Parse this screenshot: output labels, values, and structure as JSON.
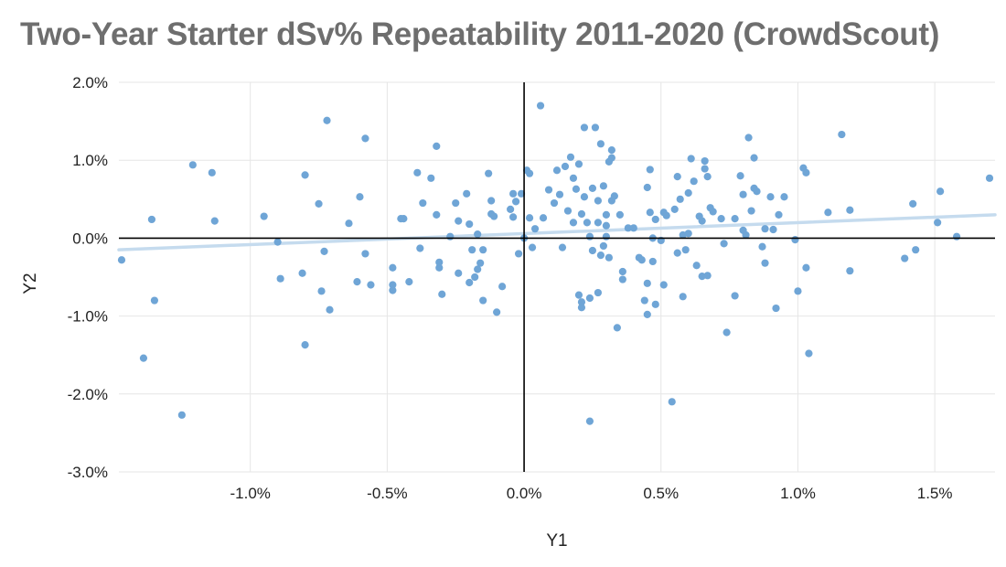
{
  "chart_data": {
    "type": "scatter",
    "title": "Two-Year Starter dSv% Repeatability 2011-2020  (CrowdScout)",
    "xlabel": "Y1",
    "ylabel": "Y2",
    "xlim": [
      -1.48,
      1.72
    ],
    "ylim": [
      -3.0,
      2.0
    ],
    "x_ticks": [
      -1.0,
      -0.5,
      0.0,
      0.5,
      1.0,
      1.5
    ],
    "x_tick_labels": [
      "-1.0%",
      "-0.5%",
      "0.0%",
      "0.5%",
      "1.0%",
      "1.5%"
    ],
    "y_ticks": [
      2.0,
      1.0,
      0.0,
      -1.0,
      -2.0,
      -3.0
    ],
    "y_tick_labels": [
      "2.0%",
      "1.0%",
      "0.0%",
      "-1.0%",
      "-2.0%",
      "-3.0%"
    ],
    "grid": true,
    "point_color": "#6fa5d6",
    "trendline": {
      "color": "#c5dbee",
      "x": [
        -1.48,
        1.72
      ],
      "y": [
        -0.15,
        0.3
      ]
    },
    "points": [
      [
        -1.47,
        -0.28
      ],
      [
        -1.35,
        -0.8
      ],
      [
        -1.36,
        0.24
      ],
      [
        -1.39,
        -1.54
      ],
      [
        -1.25,
        -2.27
      ],
      [
        -1.21,
        0.94
      ],
      [
        -1.14,
        0.84
      ],
      [
        -1.13,
        0.22
      ],
      [
        -0.95,
        0.28
      ],
      [
        -0.9,
        -0.05
      ],
      [
        -0.89,
        -0.52
      ],
      [
        -0.8,
        0.81
      ],
      [
        -0.81,
        -0.45
      ],
      [
        -0.8,
        -1.37
      ],
      [
        -0.75,
        0.44
      ],
      [
        -0.74,
        -0.68
      ],
      [
        -0.73,
        -0.17
      ],
      [
        -0.72,
        1.51
      ],
      [
        -0.71,
        -0.92
      ],
      [
        -0.64,
        0.19
      ],
      [
        -0.6,
        0.53
      ],
      [
        -0.61,
        -0.56
      ],
      [
        -0.58,
        1.28
      ],
      [
        -0.58,
        -0.2
      ],
      [
        -0.56,
        -0.6
      ],
      [
        -0.48,
        -0.38
      ],
      [
        -0.48,
        -0.67
      ],
      [
        -0.48,
        -0.6
      ],
      [
        -0.45,
        0.25
      ],
      [
        -0.44,
        0.25
      ],
      [
        -0.42,
        -0.56
      ],
      [
        -0.39,
        0.84
      ],
      [
        -0.38,
        -0.13
      ],
      [
        -0.37,
        0.45
      ],
      [
        -0.34,
        0.77
      ],
      [
        -0.32,
        1.18
      ],
      [
        -0.32,
        0.3
      ],
      [
        -0.31,
        -0.38
      ],
      [
        -0.31,
        -0.31
      ],
      [
        -0.3,
        -0.72
      ],
      [
        -0.27,
        0.02
      ],
      [
        -0.25,
        0.45
      ],
      [
        -0.24,
        -0.45
      ],
      [
        -0.24,
        0.22
      ],
      [
        -0.21,
        0.57
      ],
      [
        -0.2,
        0.18
      ],
      [
        -0.2,
        -0.57
      ],
      [
        -0.19,
        -0.15
      ],
      [
        -0.18,
        -0.5
      ],
      [
        -0.17,
        -0.4
      ],
      [
        -0.17,
        0.05
      ],
      [
        -0.16,
        -0.32
      ],
      [
        -0.15,
        -0.8
      ],
      [
        -0.15,
        -0.15
      ],
      [
        -0.13,
        0.83
      ],
      [
        -0.12,
        0.48
      ],
      [
        -0.12,
        0.31
      ],
      [
        -0.11,
        0.28
      ],
      [
        -0.1,
        -0.95
      ],
      [
        -0.08,
        -0.62
      ],
      [
        -0.05,
        0.37
      ],
      [
        -0.04,
        0.27
      ],
      [
        -0.04,
        0.57
      ],
      [
        -0.03,
        0.47
      ],
      [
        -0.02,
        -0.2
      ],
      [
        -0.01,
        0.57
      ],
      [
        0.0,
        0.0
      ],
      [
        0.01,
        0.87
      ],
      [
        0.02,
        0.83
      ],
      [
        0.02,
        0.26
      ],
      [
        0.03,
        -0.12
      ],
      [
        0.04,
        0.12
      ],
      [
        0.06,
        1.7
      ],
      [
        0.07,
        0.26
      ],
      [
        0.09,
        0.62
      ],
      [
        0.11,
        0.45
      ],
      [
        0.12,
        0.87
      ],
      [
        0.13,
        0.56
      ],
      [
        0.14,
        -0.12
      ],
      [
        0.15,
        0.92
      ],
      [
        0.16,
        0.35
      ],
      [
        0.17,
        1.04
      ],
      [
        0.18,
        0.77
      ],
      [
        0.18,
        0.2
      ],
      [
        0.19,
        0.63
      ],
      [
        0.2,
        0.95
      ],
      [
        0.2,
        -0.73
      ],
      [
        0.21,
        -0.89
      ],
      [
        0.21,
        -0.82
      ],
      [
        0.21,
        0.31
      ],
      [
        0.22,
        1.42
      ],
      [
        0.22,
        0.53
      ],
      [
        0.23,
        0.2
      ],
      [
        0.24,
        0.02
      ],
      [
        0.24,
        -2.35
      ],
      [
        0.24,
        -0.77
      ],
      [
        0.25,
        0.64
      ],
      [
        0.25,
        -0.16
      ],
      [
        0.26,
        1.42
      ],
      [
        0.27,
        0.48
      ],
      [
        0.27,
        0.2
      ],
      [
        0.27,
        -0.7
      ],
      [
        0.28,
        1.21
      ],
      [
        0.28,
        -0.22
      ],
      [
        0.29,
        0.67
      ],
      [
        0.29,
        -0.1
      ],
      [
        0.3,
        0.3
      ],
      [
        0.3,
        0.16
      ],
      [
        0.3,
        0.02
      ],
      [
        0.31,
        0.98
      ],
      [
        0.31,
        -0.25
      ],
      [
        0.32,
        1.13
      ],
      [
        0.32,
        0.48
      ],
      [
        0.32,
        1.03
      ],
      [
        0.33,
        0.54
      ],
      [
        0.34,
        -1.15
      ],
      [
        0.35,
        0.3
      ],
      [
        0.36,
        -0.53
      ],
      [
        0.36,
        -0.43
      ],
      [
        0.38,
        0.13
      ],
      [
        0.4,
        0.13
      ],
      [
        0.42,
        -0.25
      ],
      [
        0.43,
        -0.28
      ],
      [
        0.44,
        -0.8
      ],
      [
        0.45,
        0.65
      ],
      [
        0.45,
        -0.58
      ],
      [
        0.45,
        -0.98
      ],
      [
        0.46,
        0.88
      ],
      [
        0.46,
        0.33
      ],
      [
        0.47,
        0.0
      ],
      [
        0.47,
        -0.3
      ],
      [
        0.48,
        0.24
      ],
      [
        0.48,
        -0.85
      ],
      [
        0.5,
        -0.03
      ],
      [
        0.51,
        0.33
      ],
      [
        0.51,
        -0.6
      ],
      [
        0.52,
        0.29
      ],
      [
        0.54,
        -2.1
      ],
      [
        0.55,
        0.37
      ],
      [
        0.56,
        0.79
      ],
      [
        0.56,
        -0.19
      ],
      [
        0.57,
        0.5
      ],
      [
        0.58,
        0.04
      ],
      [
        0.58,
        -0.75
      ],
      [
        0.59,
        -0.15
      ],
      [
        0.6,
        0.58
      ],
      [
        0.6,
        0.06
      ],
      [
        0.61,
        1.02
      ],
      [
        0.62,
        0.73
      ],
      [
        0.63,
        -0.35
      ],
      [
        0.64,
        0.28
      ],
      [
        0.65,
        0.22
      ],
      [
        0.65,
        -0.49
      ],
      [
        0.66,
        0.89
      ],
      [
        0.66,
        0.99
      ],
      [
        0.67,
        0.79
      ],
      [
        0.67,
        -0.48
      ],
      [
        0.68,
        0.39
      ],
      [
        0.69,
        0.34
      ],
      [
        0.72,
        0.25
      ],
      [
        0.73,
        -0.07
      ],
      [
        0.74,
        -1.21
      ],
      [
        0.77,
        0.25
      ],
      [
        0.77,
        -0.74
      ],
      [
        0.79,
        0.8
      ],
      [
        0.8,
        0.56
      ],
      [
        0.8,
        0.1
      ],
      [
        0.81,
        0.04
      ],
      [
        0.82,
        1.29
      ],
      [
        0.83,
        0.35
      ],
      [
        0.84,
        0.64
      ],
      [
        0.84,
        1.03
      ],
      [
        0.85,
        0.6
      ],
      [
        0.87,
        -0.11
      ],
      [
        0.88,
        0.12
      ],
      [
        0.88,
        -0.32
      ],
      [
        0.9,
        0.53
      ],
      [
        0.91,
        0.11
      ],
      [
        0.92,
        -0.9
      ],
      [
        0.93,
        0.3
      ],
      [
        0.95,
        0.53
      ],
      [
        0.99,
        -0.02
      ],
      [
        1.0,
        -0.68
      ],
      [
        1.02,
        0.9
      ],
      [
        1.03,
        0.84
      ],
      [
        1.03,
        -0.38
      ],
      [
        1.04,
        -1.48
      ],
      [
        1.11,
        0.33
      ],
      [
        1.16,
        1.33
      ],
      [
        1.19,
        -0.42
      ],
      [
        1.19,
        0.36
      ],
      [
        1.39,
        -0.26
      ],
      [
        1.42,
        0.44
      ],
      [
        1.43,
        -0.15
      ],
      [
        1.51,
        0.2
      ],
      [
        1.52,
        0.6
      ],
      [
        1.58,
        0.02
      ],
      [
        1.7,
        0.77
      ]
    ]
  }
}
